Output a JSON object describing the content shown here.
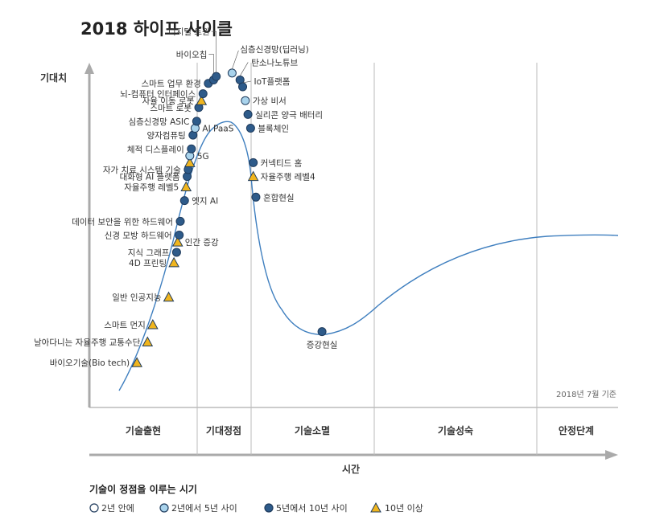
{
  "chart_data": {
    "type": "scatter",
    "title": "2018 하이프 사이클",
    "ylabel": "기대치",
    "xlabel": "시간",
    "note": "2018년 7월 기준",
    "phases": [
      "기술출현",
      "기대정점",
      "기술소멸",
      "기술성숙",
      "안정단계"
    ],
    "legend": {
      "title": "기술이 정점을 이루는 시기",
      "items": [
        {
          "key": "lt2",
          "label": "2년 안에",
          "fill": "#ffffff",
          "shape": "circle"
        },
        {
          "key": "2to5",
          "label": "2년에서 5년 사이",
          "fill": "#a9d3ec",
          "shape": "circle"
        },
        {
          "key": "5to10",
          "label": "5년에서 10년 사이",
          "fill": "#2e5b8a",
          "shape": "circle"
        },
        {
          "key": "gt10",
          "label": "10년 이상",
          "fill": "#f0b51e",
          "shape": "triangle"
        }
      ]
    },
    "colors": {
      "curve": "#3f7fbf",
      "axis": "#aaaaaa",
      "divider": "#bbbbbb",
      "outline": "#1f3b5c"
    },
    "points": [
      {
        "label": "바이오기술(Bio tech)",
        "time": 0.09,
        "expectation": 0.13,
        "category": "gt10"
      },
      {
        "label": "날아다니는 자율주행 교통수단",
        "time": 0.11,
        "expectation": 0.19,
        "category": "gt10"
      },
      {
        "label": "스마트 먼지",
        "time": 0.12,
        "expectation": 0.24,
        "category": "gt10"
      },
      {
        "label": "일반 인공지능",
        "time": 0.15,
        "expectation": 0.32,
        "category": "gt10"
      },
      {
        "label": "4D 프린팅",
        "time": 0.16,
        "expectation": 0.42,
        "category": "gt10"
      },
      {
        "label": "지식 그래프",
        "time": 0.165,
        "expectation": 0.45,
        "category": "5to10"
      },
      {
        "label": "인간 증강",
        "time": 0.167,
        "expectation": 0.48,
        "category": "gt10"
      },
      {
        "label": "신경 모방 하드웨어",
        "time": 0.17,
        "expectation": 0.5,
        "category": "5to10"
      },
      {
        "label": "데이터 보안을 위한 하드웨어",
        "time": 0.172,
        "expectation": 0.54,
        "category": "5to10"
      },
      {
        "label": "엣지 AI",
        "time": 0.18,
        "expectation": 0.6,
        "category": "5to10"
      },
      {
        "label": "자율주행 레벨5",
        "time": 0.183,
        "expectation": 0.64,
        "category": "gt10"
      },
      {
        "label": "대화형 AI 플랫폼",
        "time": 0.185,
        "expectation": 0.67,
        "category": "5to10"
      },
      {
        "label": "자가 치료 시스템 기술",
        "time": 0.187,
        "expectation": 0.69,
        "category": "5to10"
      },
      {
        "label": "자가 치료 시스템 기술",
        "time": 0.19,
        "expectation": 0.71,
        "category": "gt10"
      },
      {
        "label": "5G",
        "time": 0.19,
        "expectation": 0.73,
        "category": "2to5"
      },
      {
        "label": "체적 디스플레이",
        "time": 0.193,
        "expectation": 0.75,
        "category": "5to10"
      },
      {
        "label": "양자컴퓨팅",
        "time": 0.196,
        "expectation": 0.79,
        "category": "5to10"
      },
      {
        "label": "AI PaaS",
        "time": 0.2,
        "expectation": 0.81,
        "category": "2to5"
      },
      {
        "label": "심층신경망 ASIC",
        "time": 0.203,
        "expectation": 0.83,
        "category": "5to10"
      },
      {
        "label": "스마트 로봇",
        "time": 0.207,
        "expectation": 0.87,
        "category": "5to10"
      },
      {
        "label": "자율 이동 로봇",
        "time": 0.212,
        "expectation": 0.89,
        "category": "gt10"
      },
      {
        "label": "뇌-컴퓨터 인터페이스",
        "time": 0.215,
        "expectation": 0.91,
        "category": "5to10"
      },
      {
        "label": "스마트 업무 환경",
        "time": 0.225,
        "expectation": 0.94,
        "category": "5to10"
      },
      {
        "label": "바이오칩",
        "time": 0.235,
        "expectation": 0.95,
        "category": "5to10"
      },
      {
        "label": "디지털 트윈",
        "time": 0.24,
        "expectation": 0.96,
        "category": "5to10"
      },
      {
        "label": "심층신경망(딥러닝)",
        "time": 0.27,
        "expectation": 0.97,
        "category": "2to5"
      },
      {
        "label": "탄소나노튜브",
        "time": 0.285,
        "expectation": 0.95,
        "category": "5to10"
      },
      {
        "label": "IoT플랫폼",
        "time": 0.29,
        "expectation": 0.93,
        "category": "5to10"
      },
      {
        "label": "가상 비서",
        "time": 0.295,
        "expectation": 0.89,
        "category": "2to5"
      },
      {
        "label": "실리콘 양극 배터리",
        "time": 0.3,
        "expectation": 0.85,
        "category": "5to10"
      },
      {
        "label": "블록체인",
        "time": 0.305,
        "expectation": 0.81,
        "category": "5to10"
      },
      {
        "label": "커넥티드 홈",
        "time": 0.31,
        "expectation": 0.71,
        "category": "5to10"
      },
      {
        "label": "자율주행 레벨4",
        "time": 0.31,
        "expectation": 0.67,
        "category": "gt10"
      },
      {
        "label": "혼합현실",
        "time": 0.315,
        "expectation": 0.61,
        "category": "5to10"
      },
      {
        "label": "증강현실",
        "time": 0.44,
        "expectation": 0.22,
        "category": "5to10"
      }
    ]
  }
}
